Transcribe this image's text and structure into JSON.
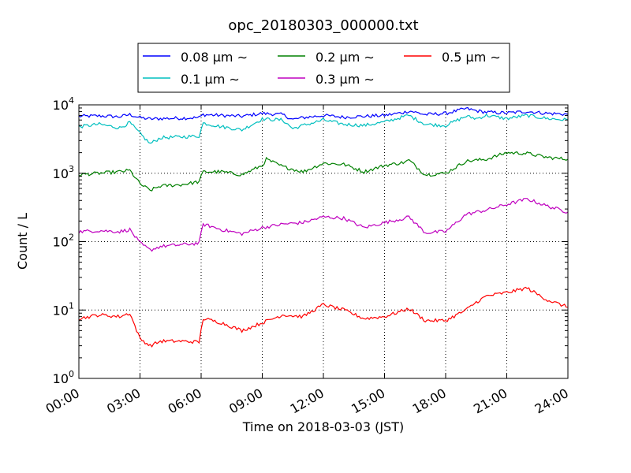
{
  "chart_data": {
    "type": "line",
    "title": "opc_20180303_000000.txt",
    "xlabel": "Time on 2018-03-03 (JST)",
    "ylabel": "Count / L",
    "yscale": "log",
    "ylim": [
      1,
      10000
    ],
    "xlim": [
      0,
      24
    ],
    "grid": true,
    "legend": {
      "placement": "top",
      "columns": 3
    },
    "x_tick_labels": [
      "00:00",
      "03:00",
      "06:00",
      "09:00",
      "12:00",
      "15:00",
      "18:00",
      "21:00",
      "24:00"
    ],
    "y_ticks": [
      {
        "base": "10",
        "exp": "0"
      },
      {
        "base": "10",
        "exp": "1"
      },
      {
        "base": "10",
        "exp": "2"
      },
      {
        "base": "10",
        "exp": "3"
      },
      {
        "base": "10",
        "exp": "4"
      }
    ],
    "series": [
      {
        "name": "0.08 μm ∼",
        "color": "#0000ff",
        "points": [
          [
            0,
            6800
          ],
          [
            1,
            6900
          ],
          [
            2,
            6700
          ],
          [
            2.5,
            7200
          ],
          [
            3,
            6500
          ],
          [
            3.5,
            6200
          ],
          [
            4,
            6300
          ],
          [
            5,
            6400
          ],
          [
            5.9,
            6500
          ],
          [
            6.1,
            7200
          ],
          [
            7,
            7000
          ],
          [
            8,
            6800
          ],
          [
            9,
            7500
          ],
          [
            10,
            7200
          ],
          [
            10.5,
            6100
          ],
          [
            11,
            6500
          ],
          [
            12,
            7000
          ],
          [
            13,
            6600
          ],
          [
            14,
            6800
          ],
          [
            15,
            7000
          ],
          [
            16,
            7800
          ],
          [
            16.2,
            8200
          ],
          [
            17,
            7200
          ],
          [
            18,
            7500
          ],
          [
            19,
            8800
          ],
          [
            19.5,
            8200
          ],
          [
            20,
            7800
          ],
          [
            21,
            7600
          ],
          [
            22,
            8000
          ],
          [
            23,
            7500
          ],
          [
            24,
            7300
          ]
        ]
      },
      {
        "name": "0.1 μm ∼",
        "color": "#00bfbf",
        "points": [
          [
            0,
            4800
          ],
          [
            1,
            5200
          ],
          [
            2,
            4600
          ],
          [
            2.5,
            5500
          ],
          [
            3,
            3800
          ],
          [
            3.5,
            2700
          ],
          [
            4,
            3300
          ],
          [
            5,
            3400
          ],
          [
            5.9,
            3500
          ],
          [
            6.1,
            5400
          ],
          [
            7,
            4800
          ],
          [
            8,
            4300
          ],
          [
            9,
            6200
          ],
          [
            10,
            6000
          ],
          [
            10.5,
            4500
          ],
          [
            11,
            5000
          ],
          [
            12,
            6000
          ],
          [
            13,
            5200
          ],
          [
            14,
            5000
          ],
          [
            15,
            5600
          ],
          [
            16,
            6800
          ],
          [
            16.2,
            7000
          ],
          [
            17,
            5200
          ],
          [
            18,
            5000
          ],
          [
            19,
            6800
          ],
          [
            19.5,
            6300
          ],
          [
            20,
            7000
          ],
          [
            21,
            6300
          ],
          [
            22,
            7000
          ],
          [
            23,
            6300
          ],
          [
            24,
            6000
          ]
        ]
      },
      {
        "name": "0.2 μm ∼",
        "color": "#008000",
        "points": [
          [
            0,
            950
          ],
          [
            1,
            1000
          ],
          [
            2,
            1050
          ],
          [
            2.5,
            1100
          ],
          [
            3,
            700
          ],
          [
            3.5,
            560
          ],
          [
            4,
            650
          ],
          [
            5,
            680
          ],
          [
            5.9,
            750
          ],
          [
            6.1,
            1050
          ],
          [
            7,
            1050
          ],
          [
            8,
            950
          ],
          [
            9,
            1300
          ],
          [
            9.2,
            1600
          ],
          [
            10,
            1250
          ],
          [
            11,
            1050
          ],
          [
            12,
            1400
          ],
          [
            13,
            1350
          ],
          [
            14,
            1050
          ],
          [
            15,
            1300
          ],
          [
            16,
            1450
          ],
          [
            16.2,
            1550
          ],
          [
            17,
            950
          ],
          [
            18,
            1000
          ],
          [
            19,
            1500
          ],
          [
            20,
            1600
          ],
          [
            21,
            2000
          ],
          [
            22,
            1950
          ],
          [
            23,
            1700
          ],
          [
            24,
            1600
          ]
        ]
      },
      {
        "name": "0.3 μm ∼",
        "color": "#bf00bf",
        "points": [
          [
            0,
            140
          ],
          [
            1,
            145
          ],
          [
            2,
            140
          ],
          [
            2.5,
            150
          ],
          [
            3,
            95
          ],
          [
            3.5,
            75
          ],
          [
            4,
            85
          ],
          [
            5,
            90
          ],
          [
            5.9,
            95
          ],
          [
            6.1,
            180
          ],
          [
            7,
            150
          ],
          [
            8,
            130
          ],
          [
            9,
            160
          ],
          [
            10,
            180
          ],
          [
            11,
            190
          ],
          [
            12,
            230
          ],
          [
            13,
            220
          ],
          [
            14,
            160
          ],
          [
            15,
            190
          ],
          [
            16,
            220
          ],
          [
            16.2,
            230
          ],
          [
            17,
            135
          ],
          [
            18,
            140
          ],
          [
            19,
            250
          ],
          [
            20,
            290
          ],
          [
            21,
            350
          ],
          [
            22,
            420
          ],
          [
            23,
            330
          ],
          [
            24,
            270
          ]
        ]
      },
      {
        "name": "0.5 μm ∼",
        "color": "#ff0000",
        "points": [
          [
            0,
            7.5
          ],
          [
            1,
            8.5
          ],
          [
            2,
            8
          ],
          [
            2.5,
            9
          ],
          [
            3,
            3.8
          ],
          [
            3.5,
            3.0
          ],
          [
            4,
            3.5
          ],
          [
            5,
            3.5
          ],
          [
            5.9,
            3.4
          ],
          [
            6.1,
            7.5
          ],
          [
            7,
            6.5
          ],
          [
            8,
            5
          ],
          [
            9,
            6.5
          ],
          [
            10,
            8.5
          ],
          [
            11,
            8
          ],
          [
            12,
            12
          ],
          [
            13,
            10
          ],
          [
            14,
            7.5
          ],
          [
            15,
            8
          ],
          [
            16,
            10
          ],
          [
            16.2,
            10.5
          ],
          [
            17,
            7
          ],
          [
            18,
            7
          ],
          [
            19,
            10
          ],
          [
            19.5,
            13
          ],
          [
            20,
            16
          ],
          [
            21,
            18
          ],
          [
            22,
            21
          ],
          [
            22.5,
            17
          ],
          [
            23,
            14
          ],
          [
            24,
            11
          ]
        ]
      }
    ]
  }
}
